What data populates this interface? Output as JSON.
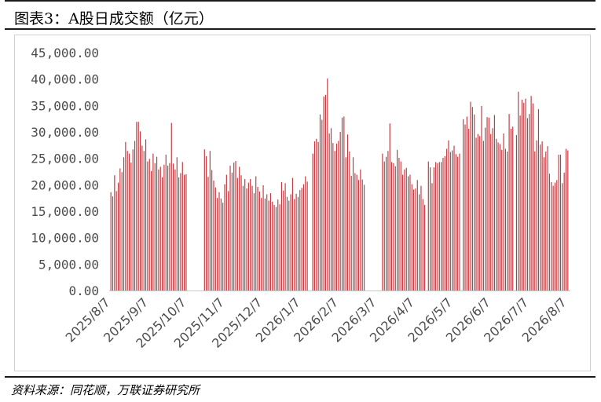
{
  "figure": {
    "title": "图表3：A股日成交额（亿元）",
    "source": "资料来源：同花顺，万联证券研究所"
  },
  "colors": {
    "bar": "#c0393f",
    "axis": "#c8c8c8",
    "text": "#4d4d4d"
  },
  "chart_data": {
    "type": "bar",
    "title": "",
    "xlabel": "",
    "ylabel": "",
    "ylim": [
      0,
      45000
    ],
    "y_ticks": [
      0,
      5000,
      10000,
      15000,
      20000,
      25000,
      30000,
      35000,
      40000,
      45000
    ],
    "y_tick_labels": [
      "0.00",
      "5,000.00",
      "10,000.00",
      "15,000.00",
      "20,000.00",
      "25,000.00",
      "30,000.00",
      "35,000.00",
      "40,000.00",
      "45,000.00"
    ],
    "x_tick_labels": [
      "2025/8/7",
      "2025/9/7",
      "2025/10/7",
      "2025/11/7",
      "2025/12/7",
      "2026/1/7",
      "2026/2/7",
      "2026/3/7",
      "2026/4/7",
      "2026/5/7",
      "2026/6/7",
      "2026/7/7",
      "2026/8/7"
    ],
    "grid": false,
    "legend": "none",
    "series": [
      {
        "values": [
          18600,
          17800,
          21800,
          18800,
          20400,
          23100,
          22400,
          25200,
          28100,
          26400,
          25900,
          24200,
          26700,
          28300,
          31900,
          31900,
          30100,
          27400,
          26400,
          28600,
          24400,
          24900,
          22600,
          25900,
          24100,
          25300,
          22900,
          23400,
          21400,
          23800,
          25700,
          23600,
          24100,
          31700,
          24000,
          22900,
          25200,
          21400,
          22200,
          24300,
          21900,
          22000,
          null,
          null,
          null,
          null,
          null,
          null,
          null,
          null,
          null,
          26700,
          25400,
          21500,
          26400,
          22800,
          20800,
          19500,
          17500,
          18600,
          17400,
          16600,
          20100,
          21900,
          18800,
          23600,
          22300,
          24200,
          24500,
          21300,
          23400,
          21800,
          19800,
          21100,
          19300,
          20400,
          21100,
          19800,
          18400,
          21600,
          19600,
          18700,
          17500,
          19900,
          17400,
          18200,
          17000,
          18400,
          16800,
          16200,
          15800,
          17200,
          16300,
          20500,
          18900,
          20300,
          17700,
          17000,
          18200,
          21300,
          17300,
          18300,
          17700,
          19000,
          19400,
          20100,
          21600,
          20600,
          null,
          null,
          25900,
          28200,
          28700,
          28100,
          33300,
          32300,
          36700,
          37000,
          40100,
          29700,
          30700,
          27900,
          26400,
          27800,
          28300,
          30000,
          32700,
          32900,
          25200,
          29500,
          26300,
          21700,
          25200,
          22200,
          21900,
          20900,
          22900,
          21000,
          20000,
          null,
          null,
          null,
          null,
          null,
          null,
          null,
          null,
          null,
          25900,
          24400,
          25300,
          26400,
          31600,
          24300,
          24100,
          23500,
          26600,
          25100,
          24400,
          21900,
          22900,
          23200,
          21600,
          21900,
          20100,
          19100,
          19300,
          20900,
          18200,
          19800,
          17300,
          16200,
          null,
          24400,
          23300,
          20300,
          23300,
          24300,
          24100,
          24300,
          24300,
          25100,
          25400,
          26800,
          28400,
          26200,
          26500,
          27400,
          25800,
          25300,
          25900,
          null,
          32400,
          31400,
          32900,
          30600,
          35700,
          34700,
          33300,
          28900,
          29600,
          29200,
          34900,
          28300,
          30800,
          32800,
          32700,
          29600,
          30700,
          33200,
          28700,
          28000,
          27700,
          26600,
          29700,
          26800,
          26300,
          33400,
          30600,
          31000,
          null,
          29400,
          37600,
          33100,
          36100,
          35500,
          36300,
          32600,
          33400,
          36800,
          35400,
          26300,
          28400,
          34300,
          27600,
          28200,
          25200,
          26300,
          27300,
          22100,
          20500,
          19800,
          20400,
          20900,
          25700,
          25700,
          20300,
          22300,
          26800,
          26500
        ]
      }
    ]
  }
}
